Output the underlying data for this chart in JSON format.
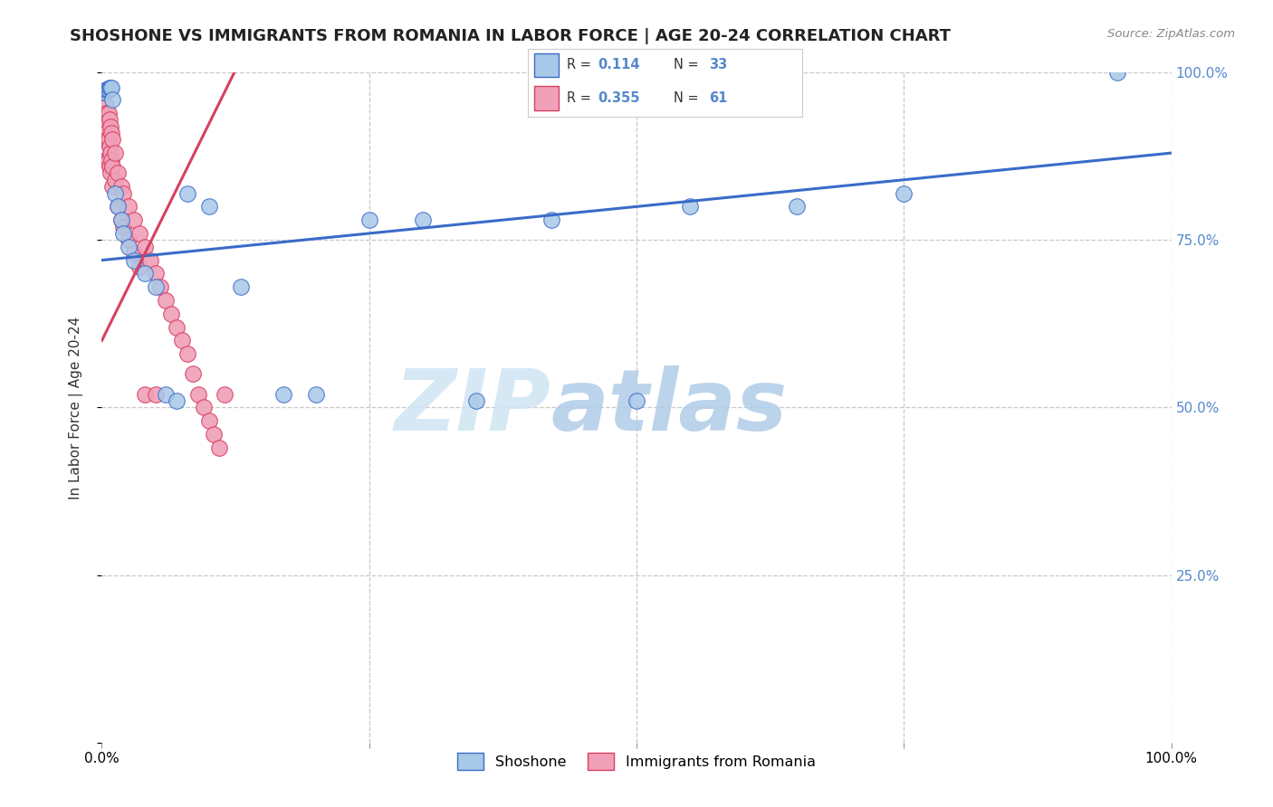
{
  "title": "SHOSHONE VS IMMIGRANTS FROM ROMANIA IN LABOR FORCE | AGE 20-24 CORRELATION CHART",
  "source_text": "Source: ZipAtlas.com",
  "ylabel": "In Labor Force | Age 20-24",
  "xlim": [
    0,
    1
  ],
  "ylim": [
    0,
    1
  ],
  "grid_color": "#c8c8c8",
  "background_color": "#ffffff",
  "shoshone_color": "#a8c8e8",
  "romania_color": "#f0a0b8",
  "shoshone_R": "0.114",
  "shoshone_N": "33",
  "romania_R": "0.355",
  "romania_N": "61",
  "legend_label_1": "Shoshone",
  "legend_label_2": "Immigrants from Romania",
  "shoshone_line_color": "#3a6bc8",
  "romania_line_color": "#d84060",
  "right_tick_color": "#5588cc",
  "watermark_zip_color": "#d0e4f4",
  "watermark_atlas_color": "#b0cce8",
  "shoshone_x": [
    0.002,
    0.003,
    0.004,
    0.005,
    0.006,
    0.007,
    0.008,
    0.009,
    0.01,
    0.012,
    0.015,
    0.018,
    0.02,
    0.025,
    0.03,
    0.04,
    0.05,
    0.06,
    0.07,
    0.08,
    0.1,
    0.13,
    0.17,
    0.2,
    0.25,
    0.3,
    0.35,
    0.42,
    0.5,
    0.55,
    0.65,
    0.75,
    0.95
  ],
  "shoshone_y": [
    0.97,
    0.97,
    0.975,
    0.975,
    0.975,
    0.978,
    0.978,
    0.978,
    0.96,
    0.82,
    0.8,
    0.78,
    0.76,
    0.74,
    0.72,
    0.7,
    0.68,
    0.52,
    0.51,
    0.82,
    0.8,
    0.68,
    0.52,
    0.52,
    0.78,
    0.78,
    0.51,
    0.78,
    0.51,
    0.8,
    0.8,
    0.82,
    1.0
  ],
  "romania_x": [
    0.001,
    0.001,
    0.001,
    0.002,
    0.002,
    0.002,
    0.003,
    0.003,
    0.003,
    0.003,
    0.004,
    0.004,
    0.005,
    0.005,
    0.005,
    0.006,
    0.006,
    0.006,
    0.007,
    0.007,
    0.007,
    0.008,
    0.008,
    0.008,
    0.009,
    0.009,
    0.01,
    0.01,
    0.01,
    0.012,
    0.012,
    0.015,
    0.015,
    0.018,
    0.018,
    0.02,
    0.02,
    0.025,
    0.025,
    0.03,
    0.03,
    0.035,
    0.035,
    0.04,
    0.04,
    0.045,
    0.05,
    0.05,
    0.055,
    0.06,
    0.065,
    0.07,
    0.075,
    0.08,
    0.085,
    0.09,
    0.095,
    0.1,
    0.105,
    0.11,
    0.115
  ],
  "romania_y": [
    0.97,
    0.93,
    0.9,
    0.97,
    0.94,
    0.9,
    0.97,
    0.93,
    0.9,
    0.87,
    0.95,
    0.91,
    0.94,
    0.9,
    0.87,
    0.94,
    0.9,
    0.87,
    0.93,
    0.89,
    0.86,
    0.92,
    0.88,
    0.85,
    0.91,
    0.87,
    0.9,
    0.86,
    0.83,
    0.88,
    0.84,
    0.85,
    0.8,
    0.83,
    0.78,
    0.82,
    0.77,
    0.8,
    0.75,
    0.78,
    0.73,
    0.76,
    0.71,
    0.74,
    0.52,
    0.72,
    0.7,
    0.52,
    0.68,
    0.66,
    0.64,
    0.62,
    0.6,
    0.58,
    0.55,
    0.52,
    0.5,
    0.48,
    0.46,
    0.44,
    0.52
  ]
}
